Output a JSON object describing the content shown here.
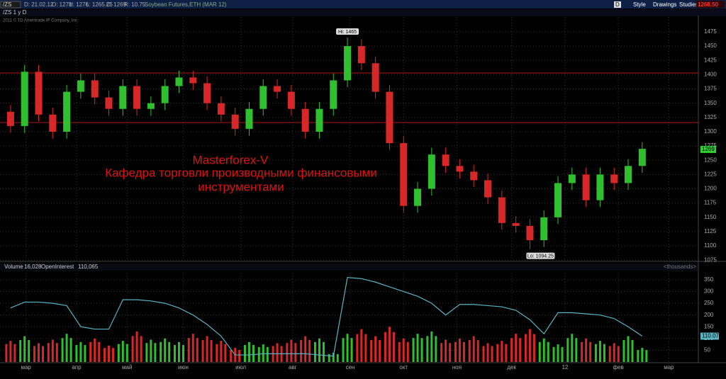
{
  "header": {
    "symbol": "/ZS",
    "date": "D: 21.02.12",
    "open": "O: 1271",
    "high": "H: 1276",
    "low": "L: 1265.25",
    "close": "C: 1269",
    "range": "R: 10.75",
    "description": "Soybean Futures,ETH (MAR 12)",
    "period": "/ZS 1 y D",
    "copyright": "2011 © TD Ameritrade IP Company, Inc.",
    "style": "Style",
    "drawings": "Drawings",
    "studies": "Studies",
    "last": "1268.50",
    "d": "D"
  },
  "chart_data": [
    {
      "type": "candlestick",
      "open": [
        1335,
        1310,
        1405,
        1330,
        1300,
        1370,
        1390,
        1360,
        1340,
        1380,
        1340,
        1350,
        1380,
        1395,
        1385,
        1350,
        1330,
        1305,
        1340,
        1380,
        1370,
        1340,
        1300,
        1340,
        1390,
        1450,
        1420,
        1370,
        1280,
        1170,
        1200,
        1260,
        1240,
        1230,
        1215,
        1185,
        1140,
        1135,
        1110,
        1150,
        1210,
        1225,
        1180,
        1225,
        1210,
        1240
      ],
      "high": [
        1347,
        1417,
        1417,
        1342,
        1382,
        1402,
        1402,
        1372,
        1392,
        1392,
        1362,
        1392,
        1407,
        1407,
        1397,
        1362,
        1342,
        1352,
        1392,
        1392,
        1382,
        1352,
        1352,
        1402,
        1465,
        1462,
        1432,
        1382,
        1292,
        1212,
        1272,
        1272,
        1252,
        1242,
        1227,
        1197,
        1152,
        1147,
        1162,
        1222,
        1237,
        1237,
        1237,
        1237,
        1252,
        1282
      ],
      "low": [
        1298,
        1298,
        1318,
        1288,
        1288,
        1358,
        1348,
        1328,
        1328,
        1328,
        1328,
        1338,
        1368,
        1373,
        1338,
        1318,
        1293,
        1293,
        1328,
        1358,
        1328,
        1288,
        1288,
        1328,
        1378,
        1408,
        1358,
        1268,
        1158,
        1158,
        1188,
        1228,
        1218,
        1203,
        1173,
        1128,
        1123,
        1094.25,
        1098,
        1138,
        1198,
        1168,
        1168,
        1198,
        1198,
        1228
      ],
      "close": [
        1310,
        1405,
        1330,
        1300,
        1370,
        1390,
        1360,
        1340,
        1380,
        1340,
        1350,
        1380,
        1395,
        1385,
        1350,
        1330,
        1305,
        1340,
        1380,
        1370,
        1340,
        1300,
        1340,
        1390,
        1450,
        1420,
        1370,
        1280,
        1170,
        1200,
        1260,
        1240,
        1230,
        1215,
        1185,
        1140,
        1135,
        1110,
        1150,
        1210,
        1225,
        1180,
        1225,
        1210,
        1240,
        1270
      ],
      "up_color": "#2fbf2f",
      "down_color": "#d62828",
      "ylim": [
        1074,
        1501
      ],
      "yticks": [
        1075,
        1100,
        1125,
        1150,
        1175,
        1200,
        1225,
        1250,
        1275,
        1300,
        1325,
        1350,
        1375,
        1400,
        1425,
        1450,
        1475
      ],
      "xlim": [
        0,
        49.5
      ],
      "xticks": [
        {
          "value": 1.6,
          "label": "мар"
        },
        {
          "value": 5.2,
          "label": "апр"
        },
        {
          "value": 8.8,
          "label": "май"
        },
        {
          "value": 12.8,
          "label": "июн"
        },
        {
          "value": 16.9,
          "label": "июл"
        },
        {
          "value": 20.6,
          "label": "авг"
        },
        {
          "value": 24.7,
          "label": "сен"
        },
        {
          "value": 28.5,
          "label": "окт"
        },
        {
          "value": 32.3,
          "label": "ноя"
        },
        {
          "value": 36.2,
          "label": "дек"
        },
        {
          "value": 40.0,
          "label": "12"
        },
        {
          "value": 43.8,
          "label": "фев"
        },
        {
          "value": 47.4,
          "label": "мар"
        }
      ],
      "levels": [
        1403,
        1316
      ],
      "level_color": "#b01818",
      "last_price": 1269,
      "hi_label": "Hi: 1465",
      "lo_label": "Lo: 1094.25",
      "overlay": [
        "Masterforex-V",
        "Кафедра торговли производными финансовыми",
        "инструментами"
      ],
      "grid": true
    },
    {
      "type": "volume",
      "label": "<thousands>",
      "series": [
        {
          "name": "Volume",
          "value_text": "16,028",
          "values": [
            90,
            110,
            80,
            95,
            120,
            85,
            100,
            70,
            90,
            130,
            95,
            100,
            85,
            120,
            110,
            90,
            60,
            85,
            75,
            80,
            95,
            110,
            100,
            40,
            120,
            140,
            110,
            150,
            100,
            120,
            130,
            95,
            100,
            110,
            80,
            90,
            120,
            140,
            100,
            75,
            120,
            100,
            90,
            80,
            110,
            60
          ]
        },
        {
          "name": "OpenInterest",
          "value_text": "110,065",
          "color": "#5ab4c4",
          "values": [
            230,
            255,
            255,
            250,
            240,
            150,
            140,
            140,
            265,
            265,
            260,
            250,
            230,
            200,
            160,
            110,
            30,
            30,
            35,
            35,
            35,
            35,
            30,
            25,
            360,
            355,
            340,
            320,
            300,
            280,
            250,
            200,
            245,
            245,
            240,
            235,
            220,
            180,
            120,
            210,
            210,
            205,
            200,
            185,
            150,
            110
          ]
        }
      ],
      "last_value": 110.07,
      "ylim": [
        0,
        380
      ],
      "yticks": [
        50,
        100,
        150,
        200,
        250,
        300,
        350
      ],
      "grid": true
    }
  ]
}
